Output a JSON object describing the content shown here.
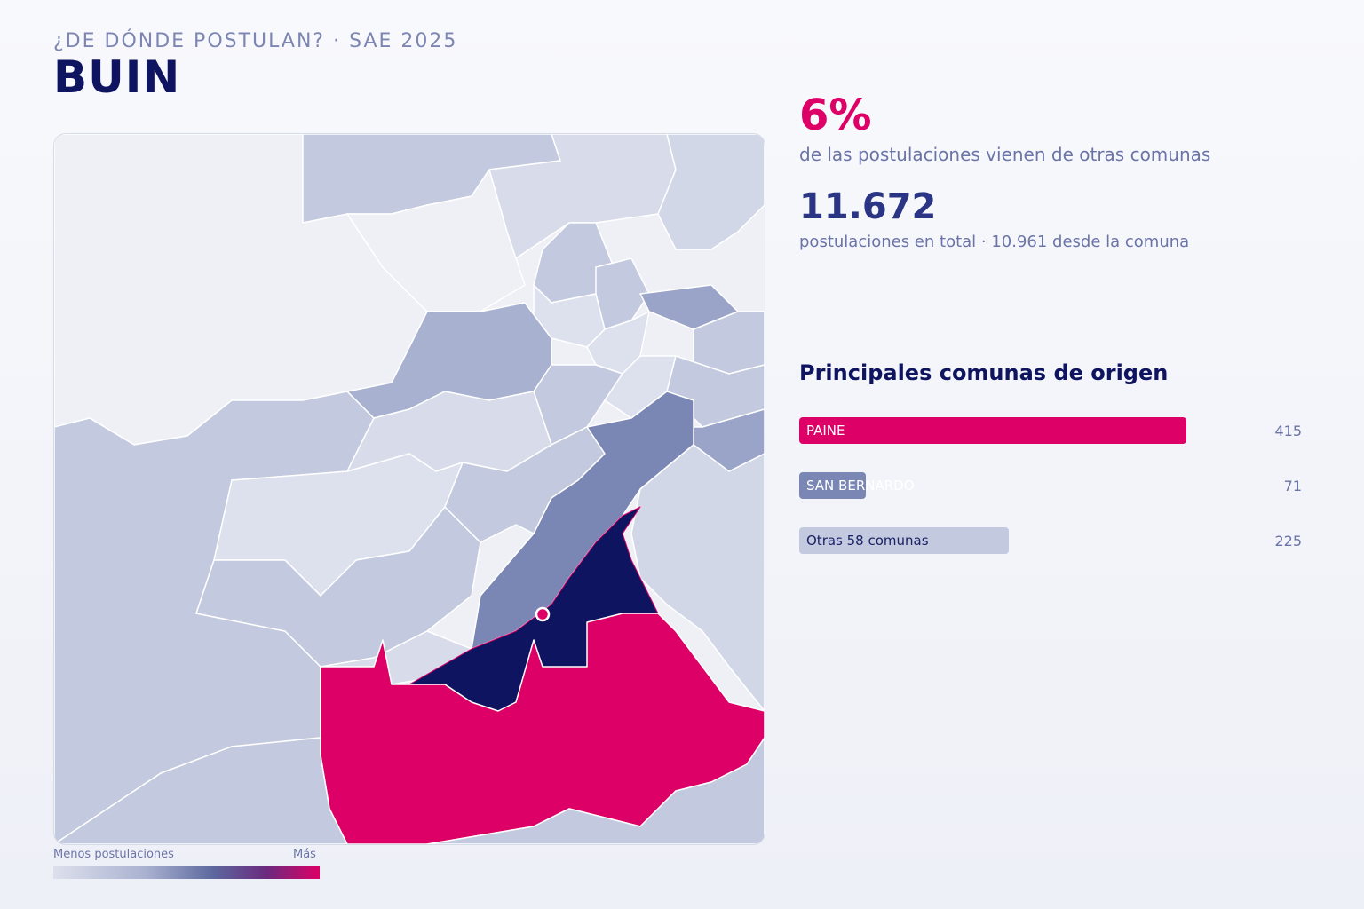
{
  "header": {
    "kicker": "¿DE DÓNDE POSTULAN? · SAE 2025",
    "title": "BUIN"
  },
  "stats": {
    "external_share": "6%",
    "external_share_caption": "de las postulaciones vienen de otras comunas",
    "total": "11.672",
    "total_caption": "postulaciones en total · 10.961 desde la comuna"
  },
  "origins": {
    "title": "Principales comunas de origen",
    "items": [
      {
        "label": "PAINE",
        "value": 415,
        "value_label": "415",
        "color": "#dd0066"
      },
      {
        "label": "SAN BERNARDO",
        "value": 71,
        "value_label": "71",
        "color": "#7a86b4"
      },
      {
        "label": "Otras 58 comunas",
        "value": 225,
        "value_label": "225",
        "color": "#c3c9de"
      }
    ],
    "max_value": 415
  },
  "map": {
    "highlighted_comuna": "BUIN",
    "colors": {
      "buin": "#0f1460",
      "paine": "#dd0066",
      "san_bernardo": "#7a86b4",
      "low": "#e8ebf3",
      "mid": "#c3c9de",
      "high": "#9aa4c8",
      "marker": "#dd0066"
    }
  },
  "legend": {
    "min_label": "Menos postulaciones",
    "max_label": "Más",
    "gradient": [
      "#dde0ec",
      "#a9b1d0",
      "#5c689e",
      "#6a2a7e",
      "#dd0066"
    ]
  }
}
